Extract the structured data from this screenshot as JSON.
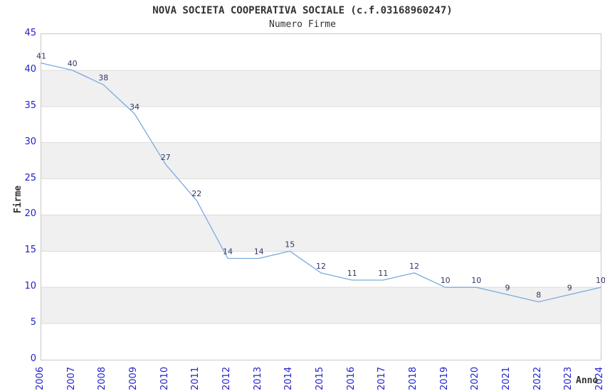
{
  "chart_data": {
    "type": "line",
    "title": "NOVA SOCIETA COOPERATIVA SOCIALE (c.f.03168960247)",
    "subtitle": "Numero Firme",
    "xlabel": "Anno",
    "ylabel": "Firme",
    "categories": [
      "2006",
      "2007",
      "2008",
      "2009",
      "2010",
      "2011",
      "2012",
      "2013",
      "2014",
      "2015",
      "2016",
      "2017",
      "2018",
      "2019",
      "2020",
      "2021",
      "2022",
      "2023",
      "2024"
    ],
    "values": [
      41,
      40,
      38,
      34,
      27,
      22,
      14,
      14,
      15,
      12,
      11,
      11,
      12,
      10,
      10,
      9,
      8,
      9,
      10
    ],
    "ylim": [
      0,
      45
    ],
    "ytick_step": 5,
    "grid": "alternating-horizontal-bands",
    "legend": "none",
    "data_labels_shown": true,
    "colors": {
      "line": "#7aaade",
      "tick_label": "#2222cc",
      "value_label": "#333366",
      "band_fill": "#f0f0f0",
      "gridline": "#dcdcdc",
      "plot_border": "#c8c8c8",
      "title_text": "#333333",
      "background": "#ffffff"
    }
  }
}
